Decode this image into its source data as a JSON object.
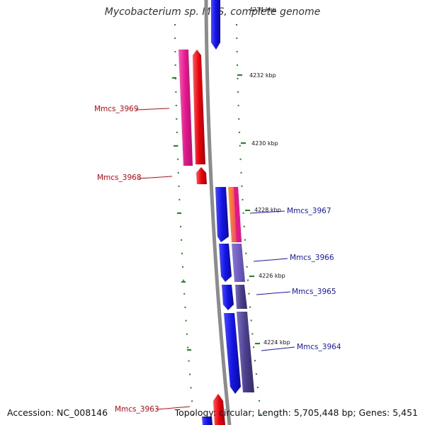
{
  "title": "Mycobacterium sp. MCS, complete genome",
  "footer": {
    "accession": "Accession: NC_008146",
    "topology": "Topology: circular; Length: 5,705,448 bp; Genes: 5,451"
  },
  "colors": {
    "forward_strand": "#e8000b",
    "reverse_strand": "#1414e6",
    "backbone": "#8c8c8c",
    "tick": "#1a8c1a",
    "magenta_feature": "#e0188c",
    "purple_feature": "#4b3f8c"
  },
  "ticks": [
    {
      "label": "4234 kbp"
    },
    {
      "label": "4232 kbp"
    },
    {
      "label": "4230 kbp"
    },
    {
      "label": "4228 kbp"
    },
    {
      "label": "4226 kbp"
    },
    {
      "label": "4224 kbp"
    }
  ],
  "genes": [
    {
      "label": "Mmcs_3969",
      "strand": "forward"
    },
    {
      "label": "Mmcs_3968",
      "strand": "forward"
    },
    {
      "label": "Mmcs_3967",
      "strand": "reverse"
    },
    {
      "label": "Mmcs_3966",
      "strand": "reverse"
    },
    {
      "label": "Mmcs_3965",
      "strand": "reverse"
    },
    {
      "label": "Mmcs_3964",
      "strand": "reverse"
    },
    {
      "label": "Mmcs_3963",
      "strand": "forward"
    }
  ]
}
